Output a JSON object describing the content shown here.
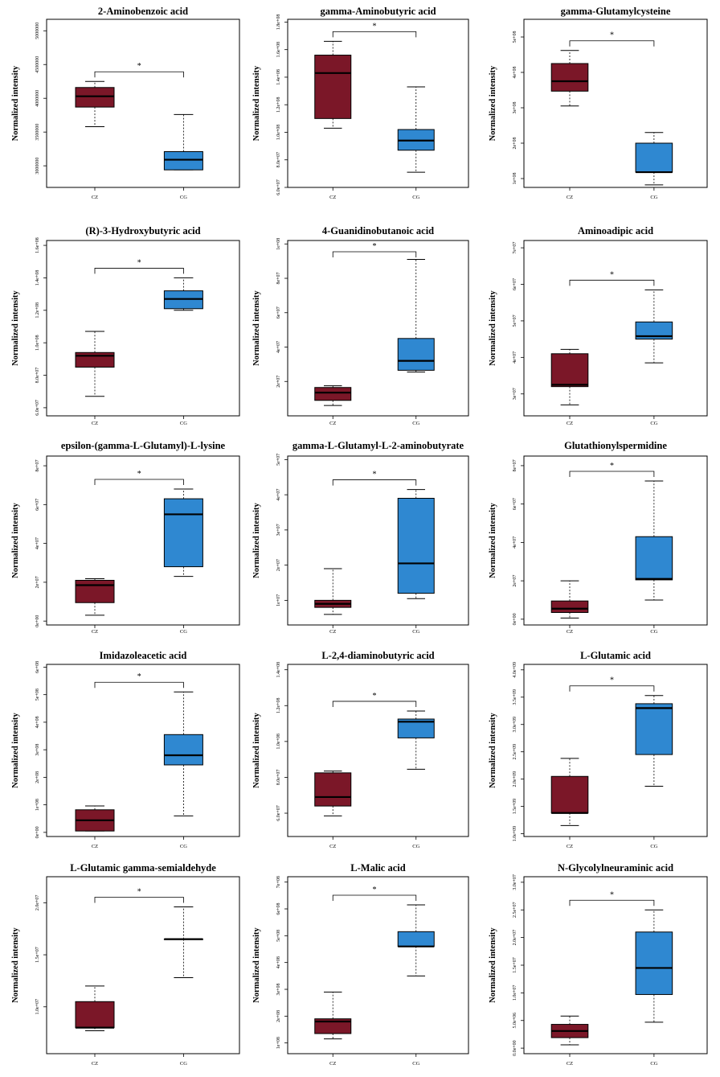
{
  "figure": {
    "ylabel": "Normalized intensity",
    "significance_marker": "*",
    "group_colors": {
      "CZ": "#7b1728",
      "CG": "#2f88d1"
    }
  },
  "chart_data": [
    {
      "type": "box",
      "title": "2-Aminobenzoic acid",
      "ylabel": "Normalized intensity",
      "categories": [
        "CZ",
        "CG"
      ],
      "ylim": [
        2680000,
        5170000
      ],
      "yticks": [
        3000000,
        3500000,
        4000000,
        4500000,
        5000000
      ],
      "yticklabels": [
        "3000000",
        "3500000",
        "4000000",
        "4500000",
        "5000000"
      ],
      "boxes": [
        {
          "group": "CZ",
          "whisker_low": 3580000,
          "q1": 3870000,
          "median": 4030000,
          "q3": 4160000,
          "whisker_high": 4250000
        },
        {
          "group": "CG",
          "whisker_low": 2940000,
          "q1": 2940000,
          "median": 3090000,
          "q3": 3210000,
          "whisker_high": 3760000
        }
      ],
      "significance": "*"
    },
    {
      "type": "box",
      "title": "gamma-Aminobutyric acid",
      "ylabel": "Normalized intensity",
      "categories": [
        "CZ",
        "CG"
      ],
      "ylim": [
        60000000,
        182000000
      ],
      "yticks": [
        60000000,
        80000000,
        100000000,
        120000000,
        140000000,
        160000000,
        180000000
      ],
      "yticklabels": [
        "6.0e+07",
        "8.0e+07",
        "1.0e+08",
        "1.2e+08",
        "1.4e+08",
        "1.6e+08",
        "1.8e+08"
      ],
      "boxes": [
        {
          "group": "CZ",
          "whisker_low": 103000000,
          "q1": 110000000,
          "median": 143000000,
          "q3": 156000000,
          "whisker_high": 166000000
        },
        {
          "group": "CG",
          "whisker_low": 71000000,
          "q1": 87000000,
          "median": 94000000,
          "q3": 102000000,
          "whisker_high": 133000000
        }
      ],
      "significance": "*"
    },
    {
      "type": "box",
      "title": "gamma-Glutamylcysteine",
      "ylabel": "Normalized intensity",
      "categories": [
        "CZ",
        "CG"
      ],
      "ylim": [
        75000000,
        550000000
      ],
      "yticks": [
        100000000,
        200000000,
        300000000,
        400000000,
        500000000
      ],
      "yticklabels": [
        "1e+08",
        "2e+08",
        "3e+08",
        "4e+08",
        "5e+08"
      ],
      "boxes": [
        {
          "group": "CZ",
          "whisker_low": 305000000,
          "q1": 347000000,
          "median": 375000000,
          "q3": 425000000,
          "whisker_high": 462000000
        },
        {
          "group": "CG",
          "whisker_low": 82000000,
          "q1": 118000000,
          "median": 118000000,
          "q3": 200000000,
          "whisker_high": 230000000
        }
      ],
      "significance": "*"
    },
    {
      "type": "box",
      "title": "(R)-3-Hydroxybutyric acid",
      "ylabel": "Normalized intensity",
      "categories": [
        "CZ",
        "CG"
      ],
      "ylim": [
        55000000,
        163000000
      ],
      "yticks": [
        60000000,
        80000000,
        100000000,
        120000000,
        140000000,
        160000000
      ],
      "yticklabels": [
        "6.0e+07",
        "8.0e+07",
        "1.0e+08",
        "1.2e+08",
        "1.4e+08",
        "1.6e+08"
      ],
      "boxes": [
        {
          "group": "CZ",
          "whisker_low": 67000000,
          "q1": 85000000,
          "median": 92000000,
          "q3": 94000000,
          "whisker_high": 107000000
        },
        {
          "group": "CG",
          "whisker_low": 120000000,
          "q1": 121000000,
          "median": 127000000,
          "q3": 132000000,
          "whisker_high": 140000000
        }
      ],
      "significance": "*"
    },
    {
      "type": "box",
      "title": "4-Guanidinobutanoic acid",
      "ylabel": "Normalized intensity",
      "categories": [
        "CZ",
        "CG"
      ],
      "ylim": [
        0,
        102000000
      ],
      "yticks": [
        20000000,
        40000000,
        60000000,
        80000000,
        100000000
      ],
      "yticklabels": [
        "2e+07",
        "4e+07",
        "6e+07",
        "8e+07",
        "1e+08"
      ],
      "boxes": [
        {
          "group": "CZ",
          "whisker_low": 6000000,
          "q1": 9000000,
          "median": 13500000,
          "q3": 16500000,
          "whisker_high": 17500000
        },
        {
          "group": "CG",
          "whisker_low": 25500000,
          "q1": 26500000,
          "median": 32000000,
          "q3": 45000000,
          "whisker_high": 91000000
        }
      ],
      "significance": "*"
    },
    {
      "type": "box",
      "title": "Aminoadipic acid",
      "ylabel": "Normalized intensity",
      "categories": [
        "CZ",
        "CG"
      ],
      "ylim": [
        24000000,
        72000000
      ],
      "yticks": [
        30000000,
        40000000,
        50000000,
        60000000,
        70000000
      ],
      "yticklabels": [
        "3e+07",
        "4e+07",
        "5e+07",
        "6e+07",
        "7e+07"
      ],
      "boxes": [
        {
          "group": "CZ",
          "whisker_low": 27000000,
          "q1": 32000000,
          "median": 32500000,
          "q3": 41000000,
          "whisker_high": 42200000
        },
        {
          "group": "CG",
          "whisker_low": 38500000,
          "q1": 45000000,
          "median": 45800000,
          "q3": 49700000,
          "whisker_high": 58500000
        }
      ],
      "significance": "*"
    },
    {
      "type": "box",
      "title": "epsilon-(gamma-L-Glutamyl)-L-lysine",
      "ylabel": "Normalized intensity",
      "categories": [
        "CZ",
        "CG"
      ],
      "ylim": [
        -2000000,
        85000000
      ],
      "yticks": [
        0,
        20000000,
        40000000,
        60000000,
        80000000
      ],
      "yticklabels": [
        "0e+00",
        "2e+07",
        "4e+07",
        "6e+07",
        "8e+07"
      ],
      "boxes": [
        {
          "group": "CZ",
          "whisker_low": 3000000,
          "q1": 9500000,
          "median": 18500000,
          "q3": 21000000,
          "whisker_high": 21800000
        },
        {
          "group": "CG",
          "whisker_low": 23000000,
          "q1": 28000000,
          "median": 55000000,
          "q3": 63000000,
          "whisker_high": 68000000
        }
      ],
      "significance": "*"
    },
    {
      "type": "box",
      "title": "gamma-L-Glutamyl-L-2-aminobutyrate",
      "ylabel": "Normalized intensity",
      "categories": [
        "CZ",
        "CG"
      ],
      "ylim": [
        3000000,
        51000000
      ],
      "yticks": [
        10000000,
        20000000,
        30000000,
        40000000,
        50000000
      ],
      "yticklabels": [
        "1e+07",
        "2e+07",
        "3e+07",
        "4e+07",
        "5e+07"
      ],
      "boxes": [
        {
          "group": "CZ",
          "whisker_low": 6000000,
          "q1": 8000000,
          "median": 9000000,
          "q3": 10000000,
          "whisker_high": 19000000
        },
        {
          "group": "CG",
          "whisker_low": 10500000,
          "q1": 12000000,
          "median": 20500000,
          "q3": 39000000,
          "whisker_high": 41500000
        }
      ],
      "significance": "*"
    },
    {
      "type": "box",
      "title": "Glutathionylspermidine",
      "ylabel": "Normalized intensity",
      "categories": [
        "CZ",
        "CG"
      ],
      "ylim": [
        -3000000,
        85000000
      ],
      "yticks": [
        0,
        20000000,
        40000000,
        60000000,
        80000000
      ],
      "yticklabels": [
        "0e+00",
        "2e+07",
        "4e+07",
        "6e+07",
        "8e+07"
      ],
      "boxes": [
        {
          "group": "CZ",
          "whisker_low": 600000,
          "q1": 3500000,
          "median": 5500000,
          "q3": 9500000,
          "whisker_high": 20000000
        },
        {
          "group": "CG",
          "whisker_low": 10000000,
          "q1": 20500000,
          "median": 21000000,
          "q3": 43000000,
          "whisker_high": 72000000
        }
      ],
      "significance": "*"
    },
    {
      "type": "box",
      "title": "Imidazoleacetic acid",
      "ylabel": "Normalized intensity",
      "categories": [
        "CZ",
        "CG"
      ],
      "ylim": [
        -15000000,
        610000000
      ],
      "yticks": [
        0,
        100000000,
        200000000,
        300000000,
        400000000,
        500000000,
        600000000
      ],
      "yticklabels": [
        "0e+00",
        "1e+08",
        "2e+08",
        "3e+08",
        "4e+08",
        "5e+08",
        "6e+08"
      ],
      "boxes": [
        {
          "group": "CZ",
          "whisker_low": 5000000,
          "q1": 5000000,
          "median": 44000000,
          "q3": 82000000,
          "whisker_high": 96000000
        },
        {
          "group": "CG",
          "whisker_low": 60000000,
          "q1": 245000000,
          "median": 280000000,
          "q3": 355000000,
          "whisker_high": 510000000
        }
      ],
      "significance": "*"
    },
    {
      "type": "box",
      "title": "L-2,4-diaminobutyric acid",
      "ylabel": "Normalized intensity",
      "categories": [
        "CZ",
        "CG"
      ],
      "ylim": [
        47000000,
        143000000
      ],
      "yticks": [
        60000000,
        80000000,
        100000000,
        120000000,
        140000000
      ],
      "yticklabels": [
        "6.0e+07",
        "8.0e+07",
        "1.0e+08",
        "1.2e+08",
        "1.4e+08"
      ],
      "boxes": [
        {
          "group": "CZ",
          "whisker_low": 58500000,
          "q1": 64000000,
          "median": 69000000,
          "q3": 82500000,
          "whisker_high": 83500000
        },
        {
          "group": "CG",
          "whisker_low": 84500000,
          "q1": 102000000,
          "median": 111000000,
          "q3": 112500000,
          "whisker_high": 117000000
        }
      ],
      "significance": "*"
    },
    {
      "type": "box",
      "title": "L-Glutamic acid",
      "ylabel": "Normalized intensity",
      "categories": [
        "CZ",
        "CG"
      ],
      "ylim": [
        950000000,
        4100000000
      ],
      "yticks": [
        1000000000,
        1500000000,
        2000000000,
        2500000000,
        3000000000,
        3500000000,
        4000000000
      ],
      "yticklabels": [
        "1.0e+09",
        "1.5e+09",
        "2.0e+09",
        "2.5e+09",
        "3.0e+09",
        "3.5e+09",
        "4.0e+09"
      ],
      "boxes": [
        {
          "group": "CZ",
          "whisker_low": 1150000000,
          "q1": 1380000000,
          "median": 1380000000,
          "q3": 2050000000,
          "whisker_high": 2380000000
        },
        {
          "group": "CG",
          "whisker_low": 1870000000,
          "q1": 2450000000,
          "median": 3300000000,
          "q3": 3380000000,
          "whisker_high": 3530000000
        }
      ],
      "significance": "*"
    },
    {
      "type": "box",
      "title": "L-Glutamic gamma-semialdehyde",
      "ylabel": "Normalized intensity",
      "categories": [
        "CZ",
        "CG"
      ],
      "ylim": [
        5500000,
        22500000
      ],
      "yticks": [
        10000000,
        15000000,
        20000000
      ],
      "yticklabels": [
        "1.0e+07",
        "1.5e+07",
        "2.0e+07"
      ],
      "boxes": [
        {
          "group": "CZ",
          "whisker_low": 7700000,
          "q1": 8000000,
          "median": 8000000,
          "q3": 10500000,
          "whisker_high": 12000000
        },
        {
          "group": "CG",
          "whisker_low": 12800000,
          "q1": 16500000,
          "median": 16500000,
          "q3": 16500000,
          "whisker_high": 19600000
        }
      ],
      "significance": "*"
    },
    {
      "type": "box",
      "title": "L-Malic acid",
      "ylabel": "Normalized intensity",
      "categories": [
        "CZ",
        "CG"
      ],
      "ylim": [
        60000000,
        720000000
      ],
      "yticks": [
        100000000,
        200000000,
        300000000,
        400000000,
        500000000,
        600000000,
        700000000
      ],
      "yticklabels": [
        "1e+08",
        "2e+08",
        "3e+08",
        "4e+08",
        "5e+08",
        "6e+08",
        "7e+08"
      ],
      "boxes": [
        {
          "group": "CZ",
          "whisker_low": 115000000,
          "q1": 135000000,
          "median": 180000000,
          "q3": 190000000,
          "whisker_high": 290000000
        },
        {
          "group": "CG",
          "whisker_low": 350000000,
          "q1": 460000000,
          "median": 460000000,
          "q3": 515000000,
          "whisker_high": 615000000
        }
      ],
      "significance": "*"
    },
    {
      "type": "box",
      "title": "N-Glycolylneuraminic acid",
      "ylabel": "Normalized intensity",
      "categories": [
        "CZ",
        "CG"
      ],
      "ylim": [
        -1000000,
        31000000
      ],
      "yticks": [
        0,
        5000000,
        10000000,
        15000000,
        20000000,
        25000000,
        30000000
      ],
      "yticklabels": [
        "0.0e+00",
        "5.0e+06",
        "1.0e+07",
        "1.5e+07",
        "2.0e+07",
        "2.5e+07",
        "3.0e+07"
      ],
      "boxes": [
        {
          "group": "CZ",
          "whisker_low": 600000,
          "q1": 1900000,
          "median": 3100000,
          "q3": 4300000,
          "whisker_high": 5800000
        },
        {
          "group": "CG",
          "whisker_low": 4700000,
          "q1": 9700000,
          "median": 14500000,
          "q3": 21000000,
          "whisker_high": 25000000
        }
      ],
      "significance": "*"
    }
  ]
}
